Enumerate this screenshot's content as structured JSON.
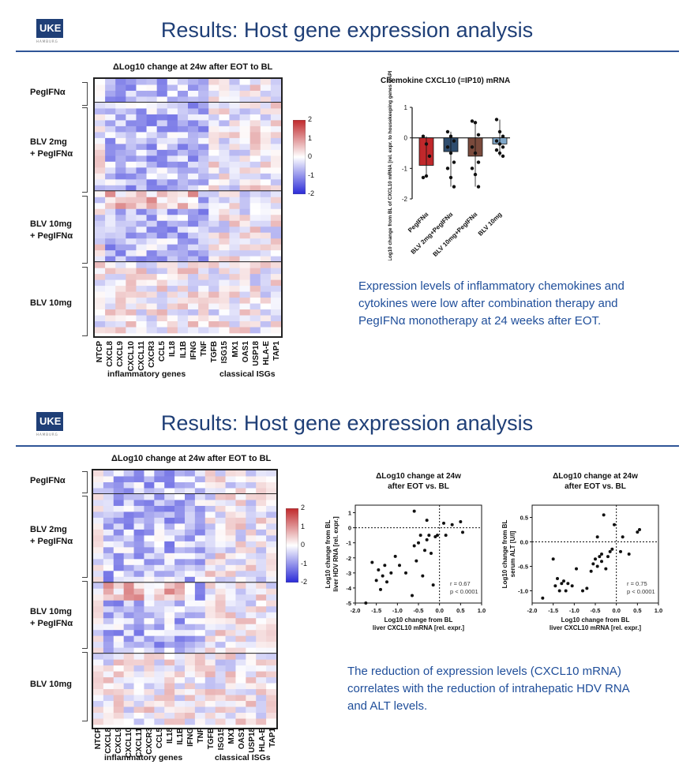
{
  "slide1": {
    "logo": "UKE",
    "logo_sub": "HAMBURG",
    "title": "Results: Host gene expression analysis",
    "heatmap_title": "ΔLog10 change at 24w after EOT to BL",
    "groups": [
      "PegIFNα",
      "BLV 2mg\n+ PegIFNα",
      "BLV 10mg\n+ PegIFNα",
      "BLV 10mg"
    ],
    "genes": [
      "NTCP",
      "CXCL8",
      "CXCL9",
      "CXCL10",
      "CXCL11",
      "CXCR3",
      "CCL5",
      "IL18",
      "IL1B",
      "IFNG",
      "TNF",
      "TGFB",
      "ISG15",
      "MX1",
      "OAS1",
      "USP18",
      "HLA-E",
      "TAP1"
    ],
    "class_inflammatory": "inflammatory genes",
    "class_isg": "classical ISGs",
    "colorbar_ticks": [
      "2",
      "1",
      "0",
      "-1",
      "-2"
    ],
    "text": "Expression levels of inflammatory chemokines and cytokines were low after combination therapy and PegIFNα monotherapy at 24 weeks after EOT."
  },
  "slide2": {
    "logo": "UKE",
    "logo_sub": "HAMBURG",
    "title": "Results: Host gene expression analysis",
    "heatmap_title": "ΔLog10 change at 24w after EOT to BL",
    "text": "The reduction of expression levels (CXCL10 mRNA) correlates with the reduction of intrahepatic HDV RNA and ALT levels."
  },
  "chart_data": [
    {
      "type": "bar",
      "title": "Chemokine CXCL10 (=IP10) mRNA",
      "ylabel": "Log10 change from BL of CXCL10 mRNA [rel. expr. to housekeeping genes GAPDH+RPL30]",
      "categories": [
        "PegIFNα",
        "BLV 2mg+PegIFNα",
        "BLV 10mg+PegIFNα",
        "BLV 10mg"
      ],
      "values": [
        -0.9,
        -0.45,
        -0.6,
        -0.2
      ],
      "colors": [
        "#c0282b",
        "#2f4d6e",
        "#7a4a3c",
        "#7fa7c9"
      ],
      "ylim": [
        -2,
        1
      ],
      "yticks": [
        "1",
        "0",
        "-1",
        "-2"
      ],
      "points": [
        [
          0.05,
          -0.2,
          -0.6,
          -1.3,
          -1.25
        ],
        [
          0.2,
          0.05,
          -0.1,
          -0.3,
          -0.5,
          -0.8,
          -1.0,
          -1.3,
          -1.6
        ],
        [
          0.55,
          0.5,
          0.1,
          -0.3,
          -0.5,
          -0.8,
          -1.0,
          -1.2,
          -1.6
        ],
        [
          0.6,
          0.2,
          0.05,
          -0.1,
          -0.2,
          -0.3,
          -0.4,
          -0.5,
          -0.6
        ]
      ]
    },
    {
      "type": "scatter",
      "title": "ΔLog10 change at 24w after EOT vs. BL",
      "xlabel": "Log10 change from BL liver CXCL10 mRNA [rel. expr.]",
      "ylabel": "Log10 change from BL liver HDV RNA [rel. expr.]",
      "xlim": [
        -2.0,
        1.0
      ],
      "ylim": [
        -5,
        1.5
      ],
      "xticks": [
        "-2.0",
        "-1.5",
        "-1.0",
        "-0.5",
        "0.0",
        "0.5",
        "1.0"
      ],
      "yticks": [
        "1",
        "0",
        "-1",
        "-2",
        "-3",
        "-4",
        "-5"
      ],
      "annotation": [
        "r = 0.67",
        "p < 0.0001"
      ],
      "x": [
        -1.75,
        -1.6,
        -1.5,
        -1.45,
        -1.4,
        -1.35,
        -1.3,
        -1.25,
        -1.15,
        -1.05,
        -0.95,
        -0.8,
        -0.65,
        -0.6,
        -0.55,
        -0.5,
        -0.45,
        -0.4,
        -0.35,
        -0.3,
        -0.25,
        -0.2,
        -0.15,
        -0.1,
        -0.05,
        0.1,
        0.15,
        0.3,
        0.5,
        0.55,
        -0.6,
        -0.3
      ],
      "y": [
        -5.0,
        -2.3,
        -3.5,
        -2.8,
        -4.1,
        -3.2,
        -2.5,
        -3.6,
        -3.0,
        -1.9,
        -2.5,
        -3.0,
        -4.5,
        1.1,
        -2.2,
        -1.0,
        -0.5,
        -3.2,
        -1.5,
        0.5,
        -0.5,
        -1.7,
        -3.8,
        -0.6,
        -0.5,
        0.3,
        -0.5,
        0.2,
        0.4,
        -0.3,
        -1.2,
        -0.8
      ]
    },
    {
      "type": "scatter",
      "title": "ΔLog10 change at 24w after EOT vs. BL",
      "xlabel": "Log10 change from BL liver CXCL10 mRNA [rel. expr.]",
      "ylabel": "Log10 change from BL serum ALT [U/l]",
      "xlim": [
        -2.0,
        1.0
      ],
      "ylim": [
        -1.25,
        0.75
      ],
      "xticks": [
        "-2.0",
        "-1.5",
        "-1.0",
        "-0.5",
        "0.0",
        "0.5",
        "1.0"
      ],
      "yticks": [
        "0.5",
        "0.0",
        "-0.5",
        "-1.0"
      ],
      "annotation": [
        "r = 0.75",
        "p < 0.0001"
      ],
      "x": [
        -1.75,
        -1.5,
        -1.45,
        -1.4,
        -1.35,
        -1.3,
        -1.25,
        -1.2,
        -1.15,
        -1.05,
        -0.95,
        -0.8,
        -0.7,
        -0.6,
        -0.55,
        -0.5,
        -0.45,
        -0.4,
        -0.35,
        -0.3,
        -0.25,
        -0.2,
        -0.15,
        -0.1,
        -0.05,
        0.1,
        0.15,
        0.3,
        0.5,
        0.55,
        -0.45,
        -0.35
      ],
      "y": [
        -1.15,
        -0.35,
        -0.9,
        -0.75,
        -1.0,
        -0.85,
        -0.8,
        -1.0,
        -0.85,
        -0.9,
        -0.55,
        -1.0,
        -0.95,
        -0.6,
        -0.45,
        -0.35,
        0.1,
        -0.3,
        -0.25,
        0.55,
        -0.55,
        -0.3,
        -0.2,
        -0.15,
        0.35,
        -0.2,
        0.1,
        -0.25,
        0.2,
        0.25,
        -0.5,
        -0.4
      ]
    }
  ]
}
